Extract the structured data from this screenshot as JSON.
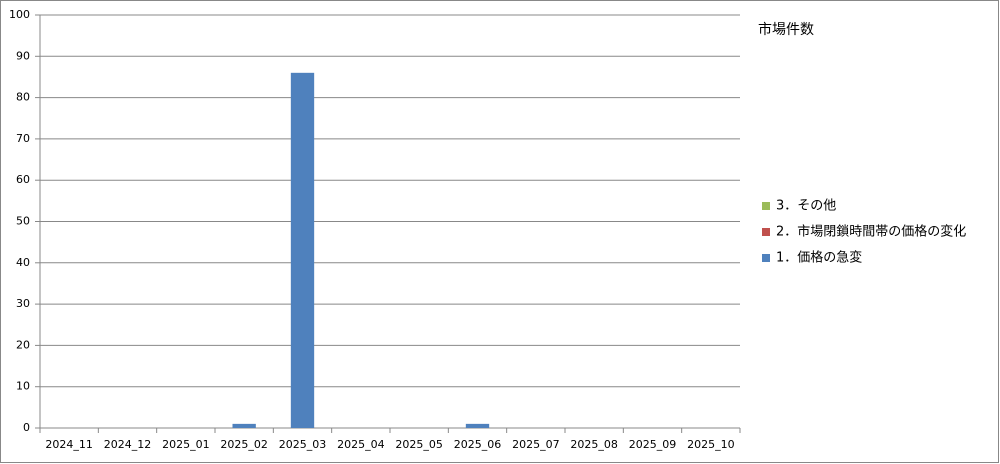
{
  "chart_data": {
    "type": "stacked_bar",
    "title": "市場件数",
    "categories": [
      "2024_11",
      "2024_12",
      "2025_01",
      "2025_02",
      "2025_03",
      "2025_04",
      "2025_05",
      "2025_06",
      "2025_07",
      "2025_08",
      "2025_09",
      "2025_10"
    ],
    "series": [
      {
        "name": "1．価格の急変",
        "color": "#4f81bd",
        "values": [
          0,
          0,
          0,
          1,
          86,
          0,
          0,
          1,
          0,
          0,
          0,
          0
        ]
      },
      {
        "name": "2．市場閉鎖時間帯の価格の変化",
        "color": "#c0504d",
        "values": [
          0,
          0,
          0,
          0,
          0,
          0,
          0,
          0,
          0,
          0,
          0,
          0
        ]
      },
      {
        "name": "3．その他",
        "color": "#9bbb59",
        "values": [
          0,
          0,
          0,
          0,
          0,
          0,
          0,
          0,
          0,
          0,
          0,
          0
        ]
      }
    ],
    "ylim": [
      0,
      100
    ],
    "yticks": [
      0,
      10,
      20,
      30,
      40,
      50,
      60,
      70,
      80,
      90,
      100
    ],
    "grid": true,
    "legend": "right"
  }
}
